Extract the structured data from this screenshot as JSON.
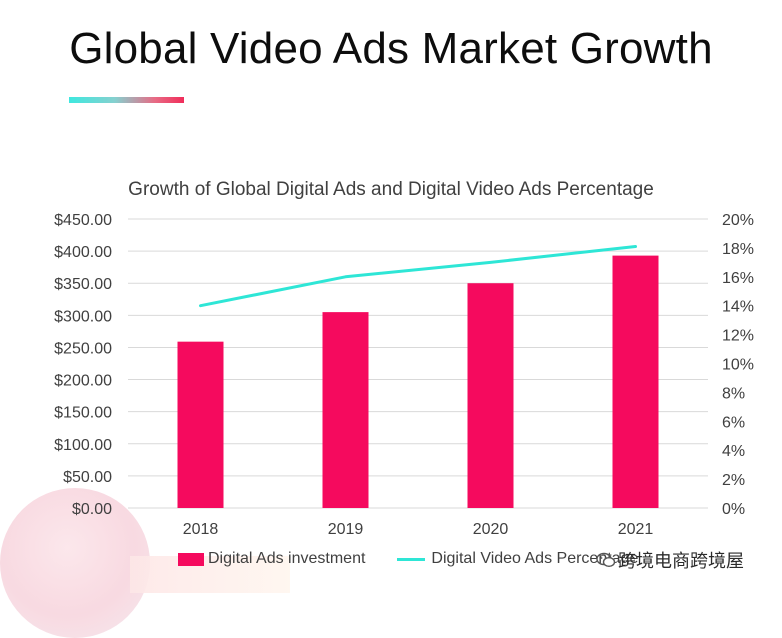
{
  "page": {
    "title": "Global Video Ads Market Growth",
    "watermark_text": "跨境电商跨境屋"
  },
  "chart_data": {
    "type": "bar",
    "title": "Growth of Global Digital Ads and Digital Video Ads Percentage",
    "categories": [
      "2018",
      "2019",
      "2020",
      "2021"
    ],
    "series": [
      {
        "name": "Digital Ads investment",
        "type": "bar",
        "axis": "left",
        "values": [
          259,
          305,
          350,
          393
        ]
      },
      {
        "name": "Digital Video Ads Percentage",
        "type": "line",
        "axis": "right",
        "values": [
          14.0,
          16.0,
          17.0,
          18.1
        ]
      }
    ],
    "y_left": {
      "ylim": [
        0,
        450
      ],
      "ticks": [
        "$0.00",
        "$50.00",
        "$100.00",
        "$150.00",
        "$200.00",
        "$250.00",
        "$300.00",
        "$350.00",
        "$400.00",
        "$450.00"
      ]
    },
    "y_right": {
      "ylim": [
        0,
        20
      ],
      "ticks": [
        "0%",
        "2%",
        "4%",
        "6%",
        "8%",
        "10%",
        "12%",
        "14%",
        "16%",
        "18%",
        "20%"
      ]
    },
    "grid": true,
    "legend": "bottom",
    "colors": {
      "bar": "#f50a5e",
      "line": "#2ee6d6"
    }
  }
}
